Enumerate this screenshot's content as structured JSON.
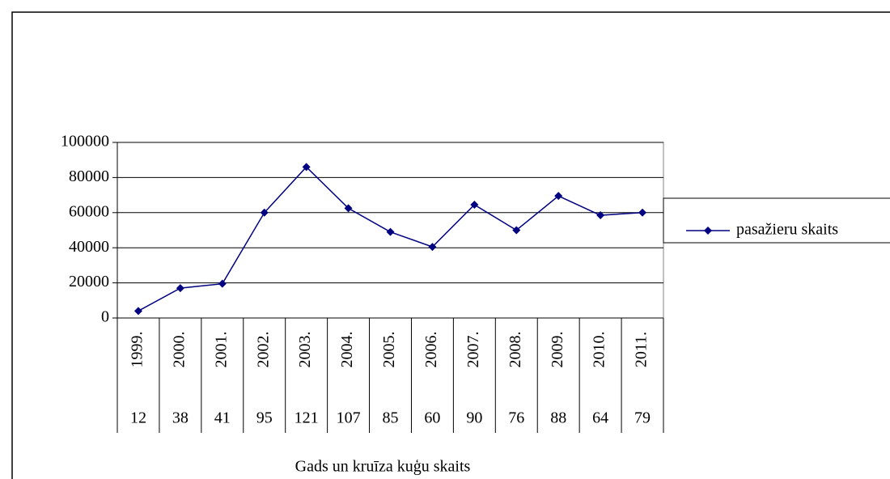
{
  "chart_data": {
    "type": "line",
    "x_axis_label": "Gads un kruīza kuģu skaits",
    "categories": [
      "1999.",
      "2000.",
      "2001.",
      "2002.",
      "2003.",
      "2004.",
      "2005.",
      "2006.",
      "2007.",
      "2008.",
      "2009.",
      "2010.",
      "2011."
    ],
    "categories_level2": [
      "12",
      "38",
      "41",
      "95",
      "121",
      "107",
      "85",
      "60",
      "90",
      "76",
      "88",
      "64",
      "79"
    ],
    "series": [
      {
        "name": "pasažieru skaits",
        "color": "#000080",
        "values": [
          4000,
          17000,
          19500,
          60000,
          86000,
          62500,
          49000,
          40500,
          64500,
          50000,
          69500,
          58500,
          60000
        ]
      }
    ],
    "ylim": [
      0,
      100000
    ],
    "yticks": [
      0,
      20000,
      40000,
      60000,
      80000,
      100000
    ],
    "grid": true,
    "legend": "right"
  }
}
